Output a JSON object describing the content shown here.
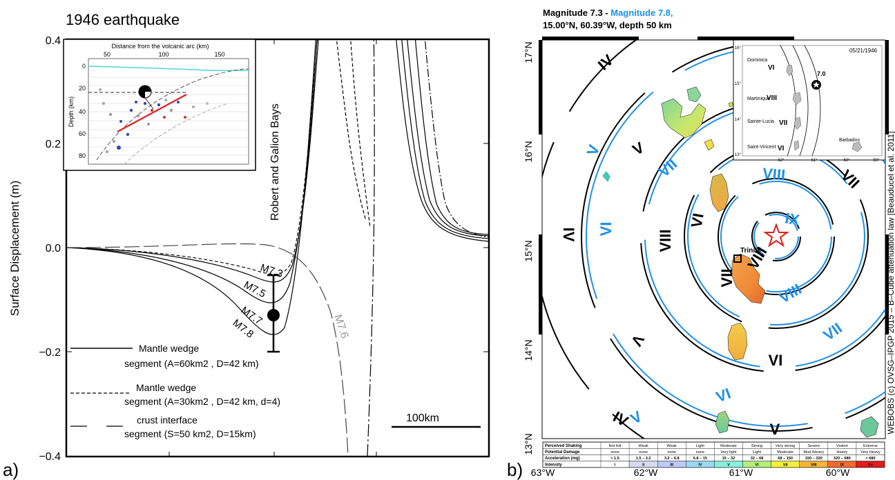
{
  "panel_a": {
    "label": "a)",
    "title": "1946 earthquake",
    "ylabel": "Surface Displacement (m)",
    "yticks": [
      "0.4",
      "0.2",
      "0.0",
      "−0.2",
      "−0.4"
    ],
    "bays_label": "Robert and Galion Bays",
    "curve_labels": [
      "M7.3",
      "M7.5",
      "M7.7",
      "M7.8"
    ],
    "crust_label": "M7.6",
    "scale_label": "100km",
    "legend": [
      {
        "line1": "Mantle wedge",
        "line2": "segment (A=60km2 , D=42 km)"
      },
      {
        "line1": "Mantle wedge",
        "line2": "segment (A=30km2 , D=42 km, d=4)"
      },
      {
        "line1": "crust interface",
        "line2": "segment (S=50 km2, D=15km)"
      }
    ],
    "inset": {
      "xlabel": "Distance from the volcanic arc (km)",
      "ylabel": "Depth (km)",
      "xticks": [
        "50",
        "100",
        "150"
      ],
      "yticks": [
        "0",
        "20",
        "40",
        "60",
        "80"
      ]
    }
  },
  "chart_data": {
    "type": "line",
    "ylabel": "Surface Displacement (m)",
    "ylim": [
      -0.4,
      0.4
    ],
    "yticks": [
      0.4,
      0.2,
      0.0,
      -0.2,
      -0.4
    ],
    "observation": {
      "value": -0.13,
      "error_low": -0.2,
      "error_high": -0.05
    },
    "series": [
      {
        "name": "M7.3",
        "min_value": -0.07
      },
      {
        "name": "M7.5",
        "min_value": -0.09
      },
      {
        "name": "M7.7",
        "min_value": -0.14
      },
      {
        "name": "M7.8",
        "min_value": -0.2
      },
      {
        "name": "M7.6",
        "min_value": -0.4
      }
    ]
  },
  "panel_b": {
    "label": "b)",
    "title_line1_black": "Magnitude 7.3 - ",
    "title_line1_blue": "Magnitude 7.8,",
    "title_line2": "15.00°N, 60.39°W, depth 50 km",
    "lat_labels": [
      "17°N",
      "16°N",
      "15°N",
      "14°N",
      "13°N"
    ],
    "lon_labels": [
      "63°W",
      "62°W",
      "61°W",
      "60°W"
    ],
    "town": "Trinité",
    "credit": "WEBOBS (c) OVSG–IPGP 2015 – B–Cube attenuation law [Beauducel et al. 2011]",
    "black_roman": [
      "IV",
      "V",
      "VI",
      "VII",
      "VIII",
      "IV",
      "V",
      "VI",
      "VII",
      "VIII",
      "IV",
      "V",
      "VI",
      "VII",
      "VIII"
    ],
    "blue_roman": [
      "V",
      "VI",
      "VII",
      "VIII",
      "IX",
      "V",
      "VI",
      "VII",
      "VIII"
    ],
    "inset": {
      "date": "05/21/1946",
      "magnitude": "7.0",
      "islands": [
        "Dominica",
        "Martinique",
        "Sainte-Lucia",
        "Saint-Vincent",
        "Barbados"
      ],
      "intensities": [
        "VI",
        "VIII",
        "VII",
        "VI"
      ],
      "lat_ticks": [
        "16°",
        "15°",
        "14°",
        "13°"
      ],
      "lon_ticks": [
        "-62°",
        "-61°",
        "-60°",
        "-59°"
      ]
    },
    "scale_table": {
      "rows": [
        {
          "header": "Perceived Shaking",
          "cells": [
            "Not felt",
            "Weak",
            "Weak",
            "Light",
            "Moderate",
            "Strong",
            "Very strong",
            "Severe",
            "Violent",
            "Extreme"
          ]
        },
        {
          "header": "Potential Damage",
          "cells": [
            "none",
            "none",
            "none",
            "none",
            "Very light",
            "Light",
            "Moderate",
            "Mod./Heavy",
            "Heavy",
            "Very Heavy"
          ]
        },
        {
          "header": "Acceleration (mg)",
          "cells": [
            "< 1.5",
            "1.5 – 3.2",
            "3.2 – 6.8",
            "6.8 – 15",
            "15 – 32",
            "32 – 68",
            "68 – 150",
            "150 – 320",
            "320 – 680",
            "> 680"
          ]
        },
        {
          "header": "Intensity",
          "cells": [
            "I",
            "II",
            "III",
            "IV",
            "V",
            "VI",
            "VII",
            "VIII",
            "IX",
            "X+"
          ]
        }
      ],
      "intensity_colors": [
        "#ffffff",
        "#d8d8f4",
        "#bfc9f7",
        "#9bd8f4",
        "#88f0d8",
        "#b4f07a",
        "#f4ef38",
        "#f7b43a",
        "#f46a2e",
        "#e11d1d"
      ]
    }
  }
}
